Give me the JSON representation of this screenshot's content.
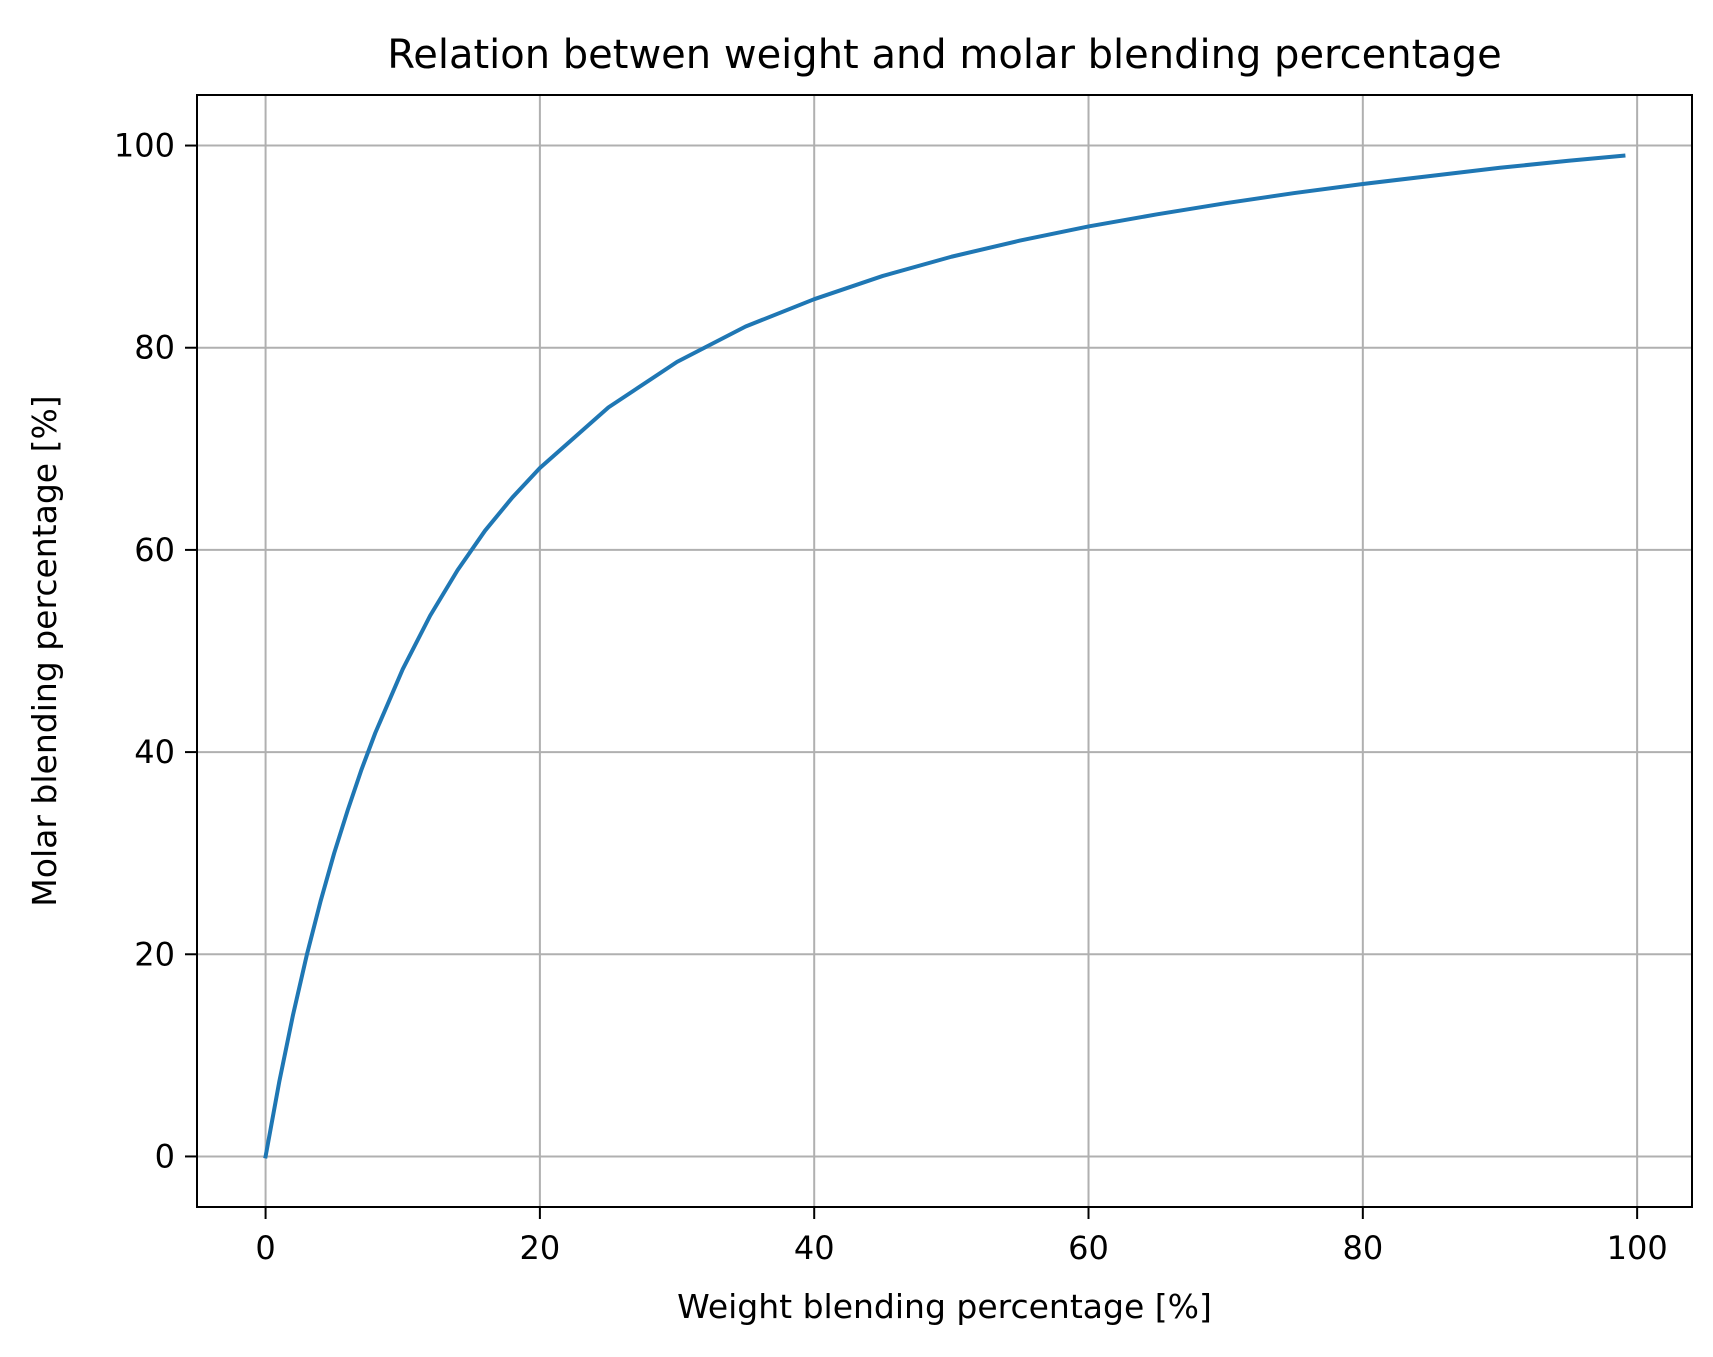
{
  "chart_data": {
    "type": "line",
    "title": "Relation betwen weight and molar blending percentage",
    "xlabel": "Weight blending percentage [%]",
    "ylabel": "Molar blending percentage [%]",
    "xlim": [
      -5,
      104
    ],
    "ylim": [
      -5,
      105
    ],
    "xticks": [
      0,
      20,
      40,
      60,
      80,
      100
    ],
    "yticks": [
      0,
      20,
      40,
      60,
      80,
      100
    ],
    "xtick_labels": [
      "0",
      "20",
      "40",
      "60",
      "80",
      "100"
    ],
    "ytick_labels": [
      "0",
      "20",
      "40",
      "60",
      "80",
      "100"
    ],
    "grid": true,
    "series": [
      {
        "color": "#1f77b4",
        "x": [
          0,
          1,
          2,
          3,
          4,
          5,
          6,
          7,
          8,
          10,
          12,
          14,
          16,
          18,
          20,
          25,
          30,
          35,
          40,
          45,
          50,
          55,
          60,
          65,
          70,
          75,
          80,
          85,
          90,
          95,
          99
        ],
        "y": [
          0,
          7.4,
          14.0,
          19.9,
          25.2,
          30.0,
          34.3,
          38.3,
          41.9,
          48.2,
          53.5,
          58.0,
          61.9,
          65.2,
          68.1,
          74.1,
          78.6,
          82.1,
          84.8,
          87.1,
          89.0,
          90.6,
          92.0,
          93.2,
          94.3,
          95.3,
          96.2,
          97.0,
          97.8,
          98.5,
          99.0
        ]
      }
    ]
  }
}
